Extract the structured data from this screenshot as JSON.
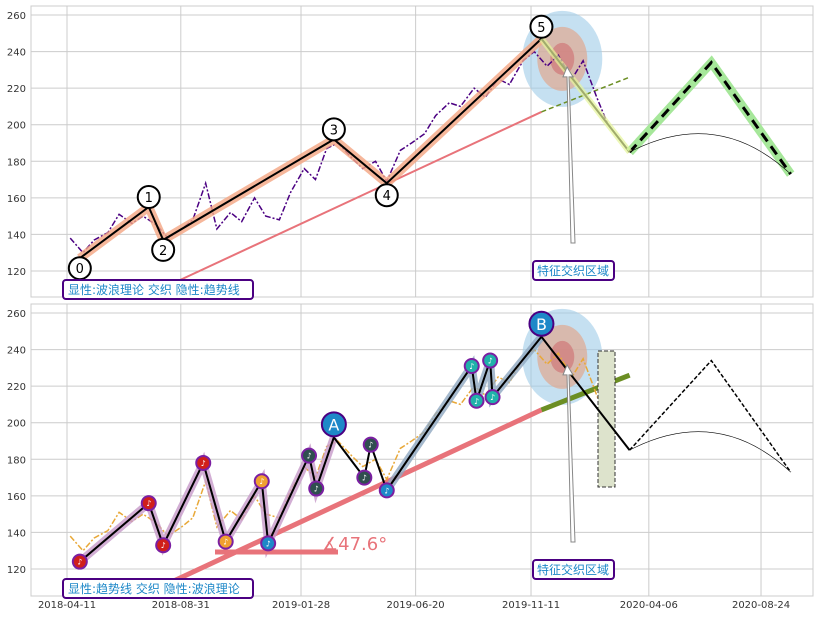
{
  "chart_data": [
    {
      "type": "line",
      "panel": "top",
      "ylim": [
        108,
        264
      ],
      "yticks": [
        120,
        140,
        160,
        180,
        200,
        220,
        240,
        260
      ],
      "grid": true,
      "annotation_box": "显性:波浪理论 交织 隐性:趋势线",
      "region_label": "特征交织区域",
      "wave_labels": [
        "0",
        "1",
        "2",
        "3",
        "4",
        "5"
      ],
      "colors": {
        "price": "#4b0082",
        "wave_band": "#f4a582",
        "trend": "#e8737a",
        "forecast": "#000000",
        "forecast_glow": "#a6e79a"
      }
    },
    {
      "type": "line",
      "panel": "bottom",
      "ylim": [
        108,
        264
      ],
      "yticks": [
        120,
        140,
        160,
        180,
        200,
        220,
        240,
        260
      ],
      "xticks": [
        "2018-04-11",
        "2018-08-31",
        "2019-01-28",
        "2019-06-20",
        "2019-11-11",
        "2020-04-06",
        "2020-08-24"
      ],
      "grid": true,
      "annotation_box": "显性:趋势线 交织 隐性:波浪理论",
      "region_label": "特征交织区域",
      "angle_label": "∡47.6°",
      "big_labels": [
        "A",
        "B"
      ],
      "colors": {
        "price": "#e8a838",
        "trend": "#e8737a",
        "trend_ext": "#6b8e23"
      }
    }
  ],
  "series": {
    "price": [
      [
        "2018-04-15",
        138
      ],
      [
        "2018-05-01",
        130
      ],
      [
        "2018-05-15",
        137
      ],
      [
        "2018-06-01",
        141
      ],
      [
        "2018-06-15",
        151
      ],
      [
        "2018-07-01",
        146
      ],
      [
        "2018-07-15",
        150
      ],
      [
        "2018-08-01",
        145
      ],
      [
        "2018-08-15",
        138
      ],
      [
        "2018-09-01",
        143
      ],
      [
        "2018-09-15",
        148
      ],
      [
        "2018-10-01",
        168
      ],
      [
        "2018-10-15",
        143
      ],
      [
        "2018-11-01",
        152
      ],
      [
        "2018-11-15",
        147
      ],
      [
        "2018-12-01",
        160
      ],
      [
        "2018-12-15",
        150
      ],
      [
        "2019-01-01",
        148
      ],
      [
        "2019-01-15",
        163
      ],
      [
        "2019-02-01",
        176
      ],
      [
        "2019-02-15",
        170
      ],
      [
        "2019-03-01",
        187
      ],
      [
        "2019-03-15",
        190
      ],
      [
        "2019-04-01",
        182
      ],
      [
        "2019-04-15",
        176
      ],
      [
        "2019-05-01",
        180
      ],
      [
        "2019-05-15",
        169
      ],
      [
        "2019-06-01",
        186
      ],
      [
        "2019-06-15",
        190
      ],
      [
        "2019-07-01",
        195
      ],
      [
        "2019-07-15",
        205
      ],
      [
        "2019-08-01",
        212
      ],
      [
        "2019-08-15",
        210
      ],
      [
        "2019-09-01",
        220
      ],
      [
        "2019-09-15",
        215
      ],
      [
        "2019-10-01",
        225
      ],
      [
        "2019-10-15",
        222
      ],
      [
        "2019-11-01",
        235
      ],
      [
        "2019-11-15",
        240
      ],
      [
        "2019-12-01",
        232
      ],
      [
        "2019-12-15",
        238
      ],
      [
        "2020-01-01",
        225
      ],
      [
        "2020-01-15",
        235
      ],
      [
        "2020-02-01",
        215
      ],
      [
        "2020-02-15",
        200
      ]
    ],
    "waves": [
      [
        "2018-04-27",
        127
      ],
      [
        "2018-07-22",
        155
      ],
      [
        "2018-08-09",
        137
      ],
      [
        "2019-03-10",
        192
      ],
      [
        "2019-05-15",
        168
      ],
      [
        "2019-11-24",
        247
      ],
      [
        "2020-03-13",
        185
      ]
    ],
    "forecast": [
      [
        "2020-03-13",
        185
      ],
      [
        "2020-06-23",
        234
      ],
      [
        "2020-09-30",
        173
      ]
    ],
    "trend": [
      [
        "2018-08-15",
        112
      ],
      [
        "2019-11-24",
        207
      ]
    ],
    "trend_ext": [
      [
        "2019-11-24",
        207
      ],
      [
        "2020-03-13",
        226
      ]
    ],
    "subwaves": [
      [
        "2018-04-27",
        124,
        "#d0201a"
      ],
      [
        "2018-07-22",
        156,
        "#d0201a"
      ],
      [
        "2018-08-09",
        133,
        "#d0201a"
      ],
      [
        "2018-09-28",
        178,
        "#d0201a"
      ],
      [
        "2018-10-26",
        135,
        "#f0a030"
      ],
      [
        "2018-12-10",
        168,
        "#f0a030"
      ],
      [
        "2018-12-18",
        134,
        "#1e88c8"
      ],
      [
        "2019-02-07",
        182,
        "#2f4f4f"
      ],
      [
        "2019-02-16",
        164,
        "#2f4f4f"
      ],
      [
        "2019-03-10",
        192,
        null
      ],
      [
        "2019-04-17",
        170,
        "#2f4f4f"
      ],
      [
        "2019-04-25",
        188,
        "#2f4f4f"
      ],
      [
        "2019-05-15",
        163,
        "#1e88c8"
      ],
      [
        "2019-08-29",
        231,
        "#20b2aa"
      ],
      [
        "2019-09-04",
        212,
        "#20b2aa"
      ],
      [
        "2019-09-21",
        234,
        "#20b2aa"
      ],
      [
        "2019-09-24",
        214,
        "#20b2aa"
      ],
      [
        "2019-11-24",
        247,
        null
      ],
      [
        "2020-03-13",
        185,
        null
      ]
    ]
  }
}
